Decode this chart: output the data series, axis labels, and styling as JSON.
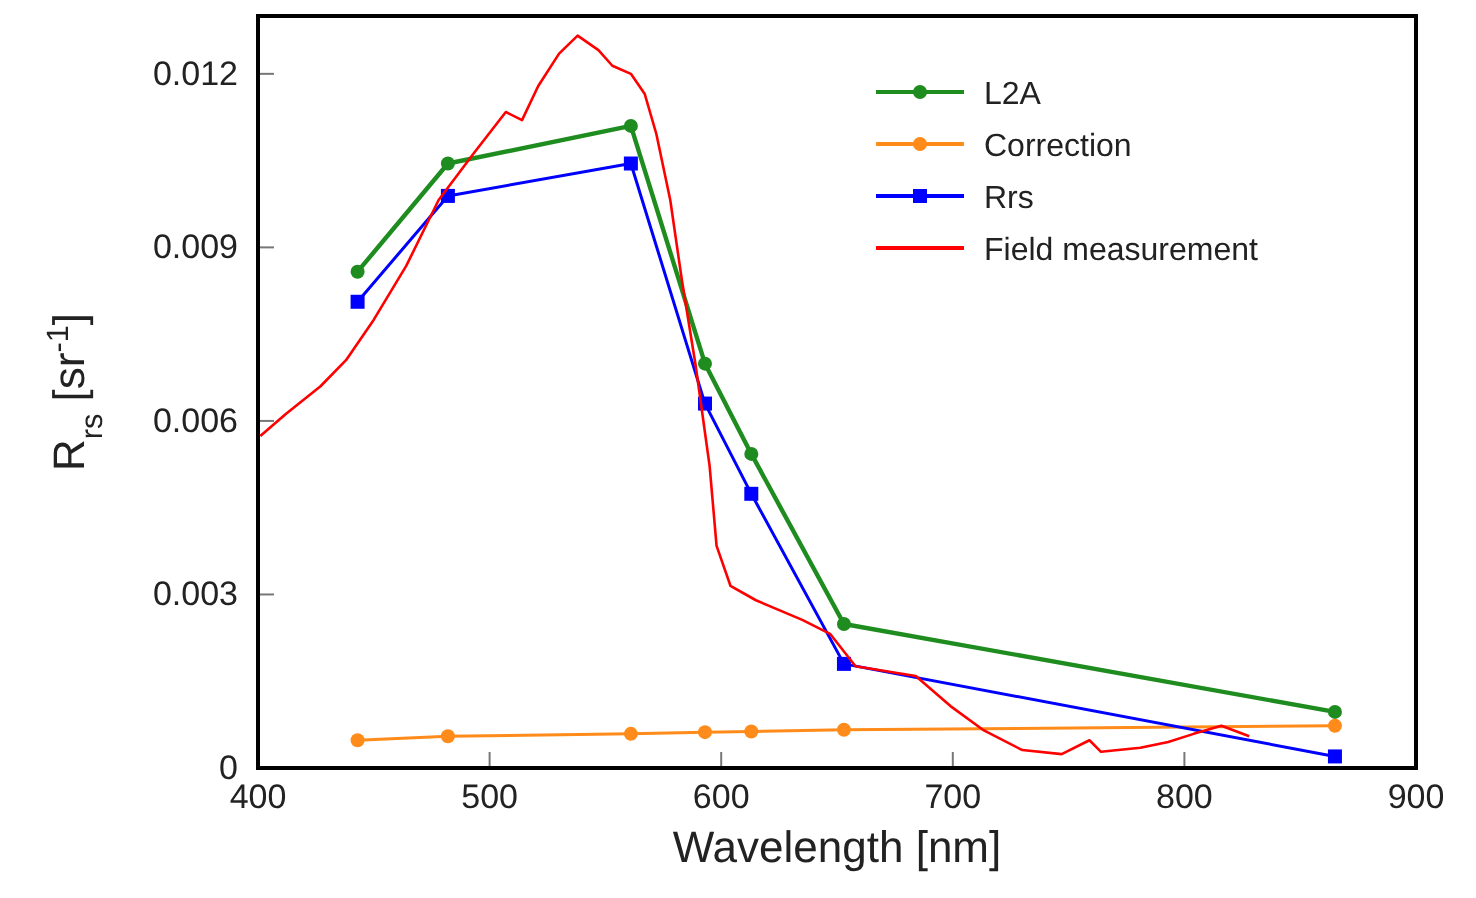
{
  "chart_data": {
    "type": "line",
    "xlabel": "Wavelength [nm]",
    "ylabel": "R$_{rs}$ [sr$^{-1}$]",
    "xlim": [
      400,
      900
    ],
    "xticks": [
      400,
      500,
      600,
      700,
      800,
      900
    ],
    "ylim": [
      0,
      0.013
    ],
    "yticks": [
      0,
      0.003,
      0.006,
      0.009,
      0.012
    ],
    "grid": false,
    "legend": "top right",
    "line_style": "solid",
    "series": [
      {
        "name": "L2A",
        "color": "#1e8c1e",
        "marker": "circle",
        "x": [
          443,
          482,
          561,
          593,
          613,
          653,
          865
        ],
        "values": [
          0.00858,
          0.01045,
          0.0111,
          0.00699,
          0.00543,
          0.00249,
          0.00097
        ]
      },
      {
        "name": "Correction",
        "color": "#ff8c1a",
        "marker": "circle",
        "x": [
          443,
          482,
          561,
          593,
          613,
          653,
          865
        ],
        "values": [
          0.00048,
          0.00055,
          0.00059,
          0.00062,
          0.00063,
          0.00066,
          0.00073
        ]
      },
      {
        "name": "Rrs",
        "color": "#0000ff",
        "marker": "square",
        "x": [
          443,
          482,
          561,
          593,
          613,
          653,
          865
        ],
        "values": [
          0.00806,
          0.00989,
          0.01045,
          0.0063,
          0.00474,
          0.0018,
          0.0002
        ]
      },
      {
        "name": "Field measurement",
        "color": "#ff0000",
        "marker": "none",
        "x": [
          401,
          412,
          427,
          438,
          450,
          464,
          478,
          493,
          507,
          514,
          521,
          530,
          538,
          547,
          553,
          561,
          567,
          572,
          578,
          583,
          589,
          595,
          598,
          604,
          615,
          635,
          647,
          658,
          684,
          699,
          713,
          730,
          747,
          759,
          764,
          781,
          793,
          804,
          816,
          828
        ],
        "values": [
          0.00574,
          0.00612,
          0.0066,
          0.00705,
          0.00775,
          0.00868,
          0.00982,
          0.01062,
          0.01134,
          0.0112,
          0.01179,
          0.01235,
          0.01266,
          0.01241,
          0.01214,
          0.012,
          0.01165,
          0.01096,
          0.00982,
          0.00844,
          0.00695,
          0.00522,
          0.00384,
          0.00315,
          0.0029,
          0.00256,
          0.00232,
          0.00176,
          0.00159,
          0.00107,
          0.00066,
          0.00031,
          0.00024,
          0.00048,
          0.00028,
          0.00035,
          0.00045,
          0.00059,
          0.00073,
          0.00055
        ]
      }
    ]
  }
}
